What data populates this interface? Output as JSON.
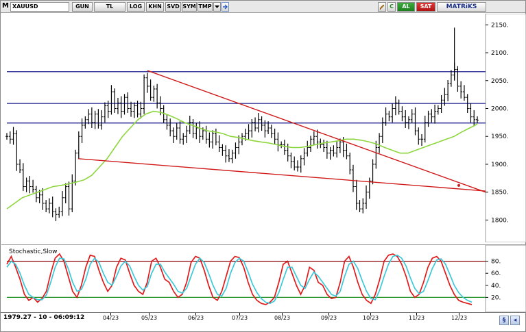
{
  "toolbar": {
    "menu_label": "M",
    "symbol": "XAUUSD",
    "buttons": [
      "GUN",
      "TL",
      "LOG",
      "KHN",
      "SVD",
      "SYM",
      "TMP"
    ],
    "dropdown_icon": "chevron-down-icon",
    "nav_icon": "arrow-right-icon",
    "edit_icon": "pencil-icon",
    "refresh_label": "C",
    "buy_label": "AL",
    "sell_label": "SAT",
    "brand_label": "MATRiKS",
    "colors": {
      "buy": "#1d7f1d",
      "sell": "#b01212",
      "brand": "#1b2f8a"
    }
  },
  "status": {
    "readout": "1979.27 - 10 - 06:09:12"
  },
  "indicator": {
    "label": "Stochastic,Slow"
  },
  "chart_data": [
    {
      "type": "line",
      "title": "",
      "series_style": "ohlc-bars",
      "y_ticks": [
        1800,
        1850,
        1900,
        1950,
        2000,
        2050,
        2100,
        2150
      ],
      "ylim": [
        1760,
        2170
      ],
      "x_ticks": [
        "04/23",
        "05/23",
        "06/23",
        "07/23",
        "08/23",
        "09/23",
        "10/23",
        "11/23",
        "12/23"
      ],
      "series": [
        {
          "style": "close",
          "color": "#000000",
          "values": [
            1950,
            1945,
            1955,
            1900,
            1890,
            1860,
            1870,
            1860,
            1855,
            1840,
            1845,
            1830,
            1820,
            1830,
            1815,
            1810,
            1815,
            1840,
            1860,
            1820,
            1870,
            1920,
            1950,
            1970,
            1980,
            1990,
            1975,
            1990,
            1970,
            1985,
            2005,
            1995,
            2030,
            2000,
            2010,
            1995,
            2020,
            2000,
            1995,
            2005,
            1990,
            2000,
            2055,
            2040,
            2020,
            2035,
            2010,
            2000,
            1980,
            1970,
            1960,
            1950,
            1965,
            1945,
            1950,
            1960,
            1975,
            1955,
            1965,
            1950,
            1960,
            1945,
            1940,
            1955,
            1940,
            1930,
            1925,
            1915,
            1910,
            1920,
            1930,
            1940,
            1950,
            1955,
            1960,
            1975,
            1965,
            1980,
            1970,
            1960,
            1965,
            1955,
            1945,
            1935,
            1935,
            1925,
            1915,
            1905,
            1895,
            1895,
            1910,
            1920,
            1930,
            1945,
            1950,
            1940,
            1935,
            1930,
            1920,
            1925,
            1920,
            1930,
            1940,
            1925,
            1915,
            1890,
            1860,
            1830,
            1820,
            1830,
            1850,
            1870,
            1900,
            1930,
            1950,
            1975,
            1990,
            1985,
            2000,
            2010,
            1995,
            1985,
            1975,
            1980,
            1990,
            1960,
            1945,
            1945,
            1975,
            1990,
            1985,
            1995,
            2000,
            2015,
            2025,
            2045,
            2060,
            2070,
            2040,
            2030,
            2020,
            2000,
            1985,
            1980,
            1979.27
          ]
        },
        {
          "name": "",
          "style": "moving-average",
          "color": "#8cd63c",
          "values": [
            1820,
            1830,
            1840,
            1845,
            1850,
            1855,
            1860,
            1862,
            1865,
            1868,
            1872,
            1880,
            1895,
            1910,
            1930,
            1950,
            1965,
            1980,
            1990,
            1995,
            1993,
            1988,
            1982,
            1975,
            1970,
            1965,
            1960,
            1958,
            1955,
            1950,
            1948,
            1945,
            1942,
            1940,
            1938,
            1935,
            1932,
            1930,
            1930,
            1932,
            1935,
            1938,
            1940,
            1942,
            1945,
            1945,
            1943,
            1940,
            1936,
            1930,
            1925,
            1920,
            1920,
            1925,
            1930,
            1935,
            1940,
            1945,
            1950,
            1958,
            1965,
            1972
          ]
        }
      ],
      "horizontal_lines": [
        {
          "value": 2066,
          "color": "#1a1a8c"
        },
        {
          "value": 2009,
          "color": "#1a1a8c"
        },
        {
          "value": 1974,
          "color": "#1a1a8c"
        }
      ],
      "trend_lines": [
        {
          "from": {
            "x": "05/23",
            "y": 2068
          },
          "to": {
            "x": "12/23",
            "y": 1850
          },
          "color": "#d01a1a"
        },
        {
          "from": {
            "x": "04/23",
            "y": 1910
          },
          "to": {
            "x": "12/23",
            "y": 1852
          },
          "color": "#d01a1a"
        }
      ]
    },
    {
      "type": "line",
      "title": "Stochastic,Slow",
      "y_ticks": [
        20,
        40,
        60,
        80
      ],
      "ylim": [
        0,
        100
      ],
      "levels": [
        {
          "value": 80,
          "color": "#8b0000"
        },
        {
          "value": 20,
          "color": "#1a8c1a"
        }
      ],
      "series": [
        {
          "style": "fast",
          "color": "#e01a1a",
          "values": [
            75,
            88,
            70,
            50,
            25,
            15,
            20,
            12,
            18,
            30,
            60,
            85,
            92,
            80,
            55,
            30,
            20,
            40,
            70,
            90,
            88,
            65,
            45,
            30,
            40,
            70,
            85,
            82,
            60,
            40,
            30,
            25,
            45,
            80,
            85,
            70,
            50,
            45,
            30,
            20,
            25,
            45,
            78,
            88,
            85,
            65,
            40,
            20,
            15,
            30,
            55,
            80,
            88,
            86,
            70,
            45,
            25,
            15,
            10,
            8,
            12,
            20,
            45,
            75,
            80,
            60,
            40,
            25,
            40,
            70,
            65,
            45,
            40,
            25,
            18,
            20,
            45,
            80,
            88,
            70,
            45,
            25,
            15,
            10,
            25,
            50,
            80,
            90,
            92,
            88,
            75,
            55,
            30,
            20,
            25,
            45,
            70,
            85,
            88,
            80,
            60,
            40,
            25,
            15,
            12,
            10,
            8
          ]
        },
        {
          "style": "slow",
          "color": "#3cc8d8",
          "values": [
            70,
            80,
            75,
            60,
            40,
            25,
            20,
            16,
            16,
            24,
            45,
            70,
            85,
            84,
            68,
            45,
            30,
            33,
            50,
            75,
            85,
            78,
            60,
            45,
            40,
            55,
            72,
            80,
            72,
            55,
            40,
            32,
            38,
            60,
            75,
            75,
            62,
            52,
            42,
            30,
            27,
            35,
            55,
            75,
            85,
            78,
            60,
            40,
            25,
            22,
            35,
            60,
            78,
            85,
            80,
            62,
            42,
            28,
            18,
            12,
            10,
            14,
            28,
            50,
            70,
            70,
            55,
            40,
            35,
            50,
            62,
            55,
            45,
            35,
            25,
            22,
            30,
            55,
            75,
            80,
            68,
            48,
            30,
            18,
            16,
            32,
            55,
            75,
            88,
            90,
            85,
            72,
            52,
            35,
            26,
            30,
            48,
            68,
            82,
            84,
            75,
            58,
            40,
            28,
            20,
            15,
            12
          ]
        }
      ]
    }
  ]
}
